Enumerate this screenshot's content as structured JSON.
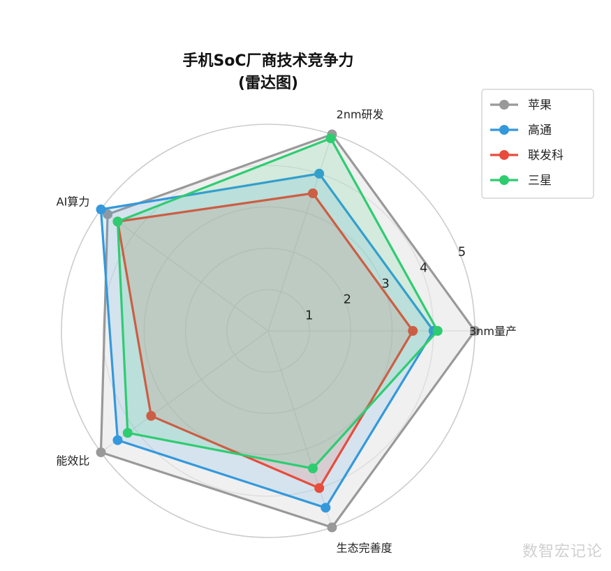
{
  "chart_data": {
    "type": "radar",
    "title_line1": "手机SoC厂商技术竞争力",
    "title_line2": "(雷达图)",
    "axes": [
      "3nm量产",
      "2nm研发",
      "AI算力",
      "能效比",
      "生态完善度"
    ],
    "rlim": [
      0,
      5
    ],
    "r_ticks": [
      1,
      2,
      3,
      4,
      5
    ],
    "grid": true,
    "legend_position": "top-right",
    "series": [
      {
        "name": "苹果",
        "values": [
          5.0,
          5.0,
          4.8,
          5.0,
          5.0
        ],
        "color": "#999999"
      },
      {
        "name": "高通",
        "values": [
          4.0,
          4.0,
          5.0,
          4.5,
          4.5
        ],
        "color": "#3498db"
      },
      {
        "name": "联发科",
        "values": [
          3.5,
          3.5,
          4.5,
          3.5,
          4.0
        ],
        "color": "#e74c3c"
      },
      {
        "name": "三星",
        "values": [
          4.1,
          4.9,
          4.5,
          4.2,
          3.5
        ],
        "color": "#2ecc71"
      }
    ]
  },
  "watermark": "数智宏记论"
}
